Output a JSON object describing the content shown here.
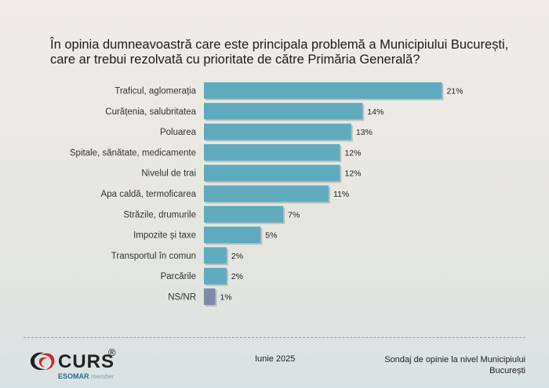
{
  "title": "În opinia dumneavoastră care este principala problemă a Municipiului București, care ar trebui rezolvată cu prioritate de către Primăria Generală?",
  "chart_data": {
    "type": "bar",
    "orientation": "horizontal",
    "categories": [
      "Traficul, aglomerația",
      "Curățenia, salubritatea",
      "Poluarea",
      "Spitale, sănătate, medicamente",
      "Nivelul de trai",
      "Apa caldă, termoficarea",
      "Străzile, drumurile",
      "Impozite și taxe",
      "Transportul în comun",
      "Parcările",
      "NS/NR"
    ],
    "values": [
      21,
      14,
      13,
      12,
      12,
      11,
      7,
      5,
      2,
      2,
      1
    ],
    "value_labels": [
      "21%",
      "14%",
      "13%",
      "12%",
      "12%",
      "11%",
      "7%",
      "5%",
      "2%",
      "2%",
      "1%"
    ],
    "unit": "%",
    "colors": {
      "bar": "#5fabbd",
      "ns_bar": "#7f8aa6",
      "bar_shadow": "#8a8f94"
    }
  },
  "footer": {
    "date": "Iunie 2025",
    "source": "Sondaj de opinie la nivel Municipiului București"
  },
  "logo": {
    "name": "CURS",
    "registered": "®",
    "esomar": "ESOMAR",
    "member": "member",
    "colors": {
      "swirl_red": "#d3232a",
      "swirl_dark": "#222222",
      "esomar": "#1f6f94"
    }
  }
}
